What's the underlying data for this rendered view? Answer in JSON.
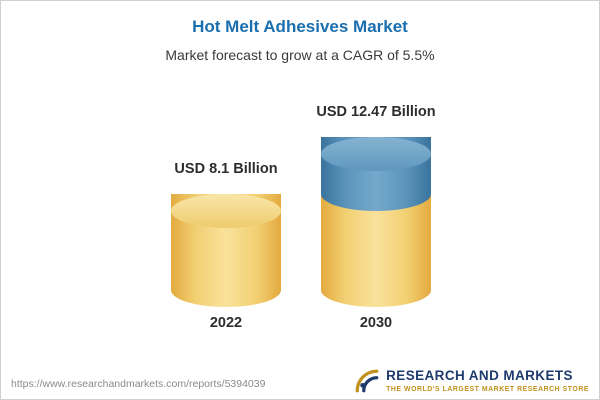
{
  "header": {
    "title": "Hot Melt Adhesives Market",
    "subtitle": "Market forecast to grow at a CAGR of 5.5%"
  },
  "chart_data": {
    "type": "bar",
    "variant": "3d-cylinder",
    "categories": [
      "2022",
      "2030"
    ],
    "values": [
      8.1,
      12.47
    ],
    "value_labels": [
      "USD 8.1 Billion",
      "USD 12.47 Billion"
    ],
    "unit": "USD Billion",
    "cagr": "5.5%",
    "title": "Hot Melt Adhesives Market",
    "subtitle": "Market forecast to grow at a CAGR of 5.5%",
    "notes": "2030 bar shows base value in gold with growth segment above in blue",
    "colors": {
      "title_accent": "#1b6fae",
      "bar_base": "#f2cf72",
      "bar_growth": "#5b93ba",
      "label_text": "#2d2d2d"
    }
  },
  "footer": {
    "url": "https://www.researchandmarkets.com/reports/5394039",
    "logo_text": "RESEARCH AND MARKETS",
    "logo_tagline": "THE WORLD'S LARGEST MARKET RESEARCH STORE",
    "logo_navy": "#1f3b6e",
    "logo_gold": "#c0921c"
  }
}
